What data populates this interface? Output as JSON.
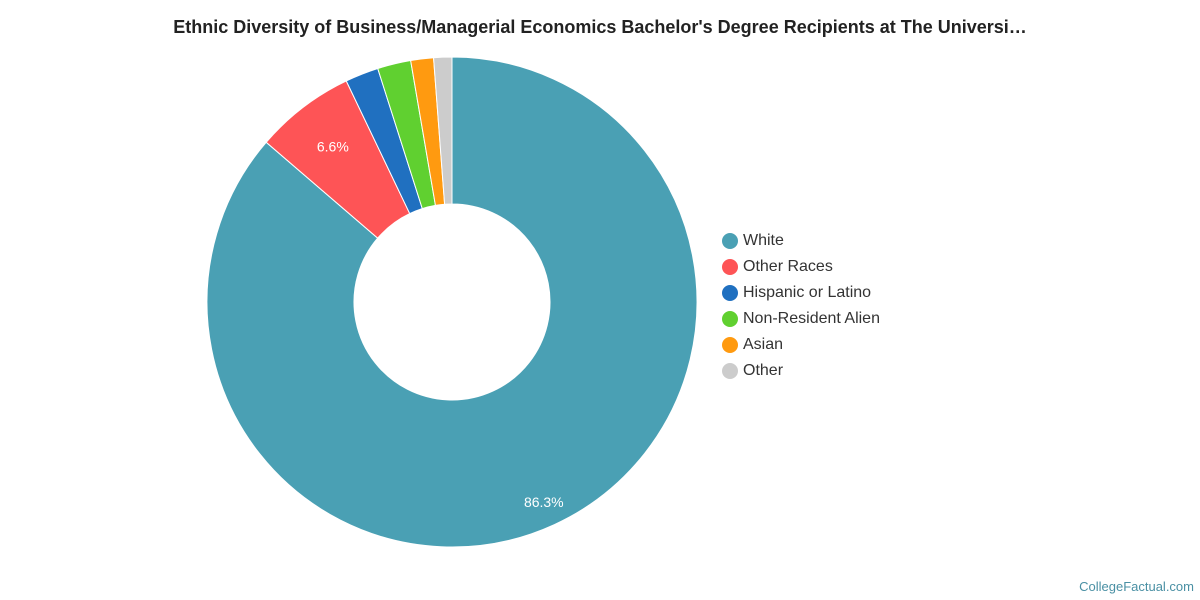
{
  "chart_data": {
    "type": "pie",
    "donut": true,
    "title": "Ethnic Diversity of Business/Managerial Economics Bachelor's Degree Recipients at The Universi…",
    "legend_position": "right",
    "slices": [
      {
        "name": "White",
        "value": 86.3,
        "color": "#4aa0b4",
        "label": "86.3%"
      },
      {
        "name": "Other Races",
        "value": 6.6,
        "color": "#fe5456",
        "label": "6.6%"
      },
      {
        "name": "Hispanic or Latino",
        "value": 2.2,
        "color": "#2070c0",
        "label": ""
      },
      {
        "name": "Non-Resident Alien",
        "value": 2.2,
        "color": "#60d030",
        "label": ""
      },
      {
        "name": "Asian",
        "value": 1.5,
        "color": "#ff9a10",
        "label": ""
      },
      {
        "name": "Other",
        "value": 1.2,
        "color": "#cccccc",
        "label": ""
      }
    ]
  },
  "credit": "CollegeFactual.com"
}
